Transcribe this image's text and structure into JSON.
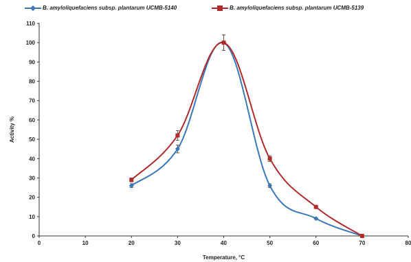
{
  "chart_data": {
    "type": "line",
    "xlabel": "Temperature, °C",
    "ylabel": "Activity %",
    "xlim": [
      0,
      80
    ],
    "ylim": [
      0,
      110
    ],
    "xticks": [
      0,
      10,
      20,
      30,
      40,
      50,
      60,
      70,
      80
    ],
    "yticks": [
      0,
      10,
      20,
      30,
      40,
      50,
      60,
      70,
      80,
      90,
      100,
      110
    ],
    "grid": false,
    "legend_position": "top",
    "series": [
      {
        "name": "B. amyloliquefaciens subsp. plantarum UCMB-5140",
        "color": "#3b78b8",
        "marker": "diamond",
        "x": [
          20,
          30,
          40,
          50,
          60,
          70
        ],
        "y": [
          26,
          45,
          100,
          26,
          9,
          0
        ],
        "error": [
          1,
          2,
          4,
          1,
          0.5,
          0.3
        ]
      },
      {
        "name": "B. amyloliquefaciens subsp. plantarum UCMB-5139",
        "color": "#b22a2a",
        "marker": "square",
        "x": [
          20,
          30,
          40,
          50,
          60,
          70
        ],
        "y": [
          29,
          52,
          100,
          40,
          15,
          0
        ],
        "error": [
          1,
          2.5,
          4,
          1.5,
          0.8,
          0.3
        ]
      }
    ]
  }
}
